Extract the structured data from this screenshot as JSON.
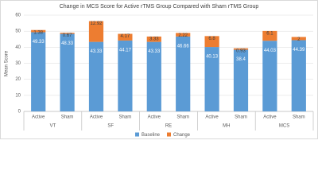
{
  "chart_data": {
    "type": "stacked-bar",
    "title": "Change in MCS Score for Active rTMS Group Compared with Sham rTMS Group",
    "y_label": "Mean Score",
    "groups": [
      "VT",
      "SF",
      "RE",
      "MH",
      "MCS"
    ],
    "categories": [
      "Active",
      "Sham",
      "Active",
      "Sham",
      "Active",
      "Sham",
      "Active",
      "Sham",
      "Active",
      "Sham"
    ],
    "series": [
      {
        "name": "Baseline",
        "color": "#5b9bd5",
        "values": [
          49.33,
          48.33,
          43.33,
          44.17,
          43.33,
          46.66,
          40.13,
          38.4,
          44.03,
          44.39
        ]
      },
      {
        "name": "Change",
        "color": "#ed7d31",
        "values": [
          1.38,
          0.67,
          12.92,
          4.17,
          3.33,
          2.22,
          6.8,
          0.93,
          6.1,
          2
        ]
      }
    ],
    "ylim": [
      0,
      60
    ],
    "yticks": [
      0,
      10,
      20,
      30,
      40,
      50,
      60
    ],
    "grid": true,
    "legend": "bottom"
  }
}
